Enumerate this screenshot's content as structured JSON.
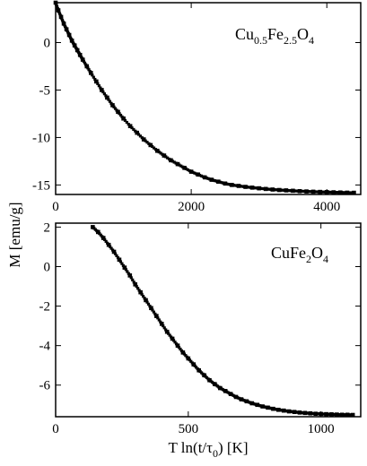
{
  "figure": {
    "ylabel": "M [emu/g]",
    "xlabel": "T ln(t/τ",
    "xlabel_sub": "0",
    "xlabel_tail": ") [K]"
  },
  "chart_data": [
    {
      "type": "scatter",
      "panel_label": {
        "parts": [
          "Cu",
          "0.5",
          "Fe",
          "2.5",
          "O",
          "4"
        ]
      },
      "xlim": [
        0,
        4500
      ],
      "ylim": [
        -16,
        4.2
      ],
      "xticks": [
        0,
        2000,
        4000
      ],
      "xtick_labels": [
        "0",
        "2000",
        "4000"
      ],
      "yticks": [
        0,
        -5,
        -10,
        -15
      ],
      "ytick_labels": [
        "0",
        "-5",
        "-10",
        "-15"
      ],
      "grid": false,
      "legend": "none",
      "series": [
        {
          "x": [
            0,
            40,
            80,
            120,
            160,
            200,
            240,
            280,
            320,
            360,
            400,
            460,
            520,
            600,
            680,
            760,
            840,
            920,
            1000,
            1100,
            1200,
            1300,
            1400,
            1500,
            1600,
            1700,
            1800,
            1900,
            2000,
            2100,
            2200,
            2300,
            2400,
            2500,
            2600,
            2700,
            2800,
            2900,
            3000,
            3100,
            3200,
            3300,
            3400,
            3500,
            3600,
            3700,
            3800,
            3900,
            4000,
            4100,
            4200,
            4300,
            4400
          ],
          "y": [
            4.2,
            3.4,
            2.7,
            2.0,
            1.4,
            0.8,
            0.2,
            -0.3,
            -0.8,
            -1.3,
            -1.8,
            -2.5,
            -3.2,
            -4.1,
            -5.0,
            -5.8,
            -6.6,
            -7.3,
            -8.0,
            -8.8,
            -9.5,
            -10.2,
            -10.8,
            -11.4,
            -11.9,
            -12.4,
            -12.8,
            -13.2,
            -13.6,
            -13.9,
            -14.2,
            -14.45,
            -14.65,
            -14.85,
            -15.0,
            -15.1,
            -15.2,
            -15.28,
            -15.35,
            -15.42,
            -15.48,
            -15.53,
            -15.57,
            -15.61,
            -15.65,
            -15.68,
            -15.71,
            -15.73,
            -15.75,
            -15.77,
            -15.79,
            -15.81,
            -15.82
          ]
        }
      ]
    },
    {
      "type": "scatter",
      "panel_label": {
        "parts": [
          "CuFe",
          "2",
          "O",
          "4"
        ]
      },
      "xlim": [
        0,
        1150
      ],
      "ylim": [
        -7.6,
        2.2
      ],
      "xticks": [
        0,
        500,
        1000
      ],
      "xtick_labels": [
        "0",
        "500",
        "1000"
      ],
      "yticks": [
        2,
        0,
        -2,
        -4,
        -6
      ],
      "ytick_labels": [
        "2",
        "0",
        "-2",
        "-4",
        "-6"
      ],
      "grid": false,
      "legend": "none",
      "series": [
        {
          "x": [
            140,
            160,
            180,
            200,
            220,
            240,
            260,
            280,
            300,
            320,
            340,
            360,
            380,
            400,
            420,
            440,
            460,
            480,
            500,
            520,
            540,
            560,
            580,
            600,
            620,
            640,
            660,
            680,
            700,
            720,
            740,
            760,
            780,
            800,
            820,
            840,
            860,
            880,
            900,
            920,
            940,
            960,
            980,
            1000,
            1020,
            1040,
            1060,
            1080,
            1100,
            1120
          ],
          "y": [
            2.0,
            1.75,
            1.45,
            1.1,
            0.75,
            0.35,
            -0.05,
            -0.45,
            -0.9,
            -1.3,
            -1.7,
            -2.1,
            -2.5,
            -2.9,
            -3.3,
            -3.65,
            -4.0,
            -4.35,
            -4.65,
            -4.95,
            -5.25,
            -5.5,
            -5.75,
            -5.95,
            -6.15,
            -6.3,
            -6.45,
            -6.6,
            -6.72,
            -6.82,
            -6.92,
            -7.0,
            -7.08,
            -7.14,
            -7.2,
            -7.25,
            -7.29,
            -7.33,
            -7.36,
            -7.39,
            -7.41,
            -7.43,
            -7.45,
            -7.46,
            -7.47,
            -7.48,
            -7.49,
            -7.5,
            -7.5,
            -7.51
          ]
        }
      ]
    }
  ]
}
